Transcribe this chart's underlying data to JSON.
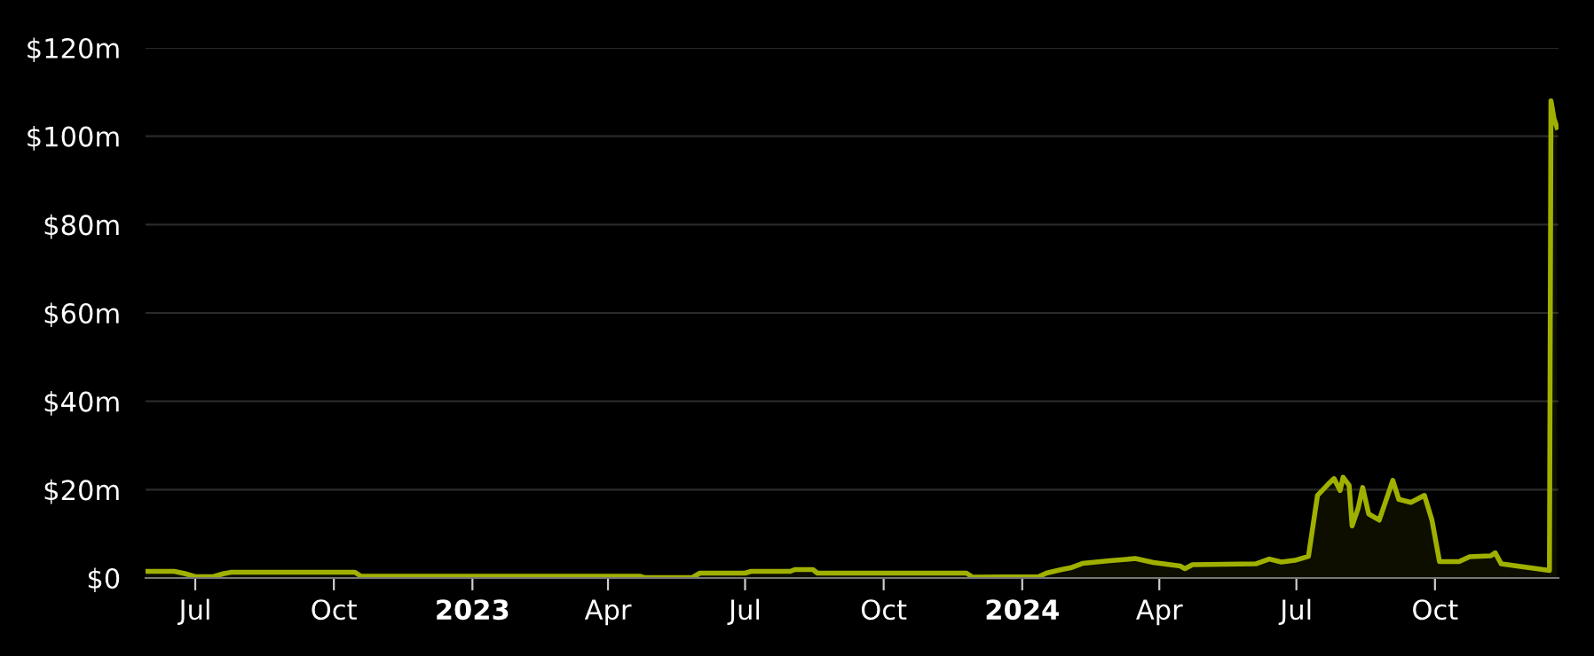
{
  "chart_data": {
    "type": "area",
    "grid": "y",
    "legend": false,
    "xlim": [
      "2022-05-29",
      "2024-12-22"
    ],
    "xticks": [
      {
        "value": "2022-07-01",
        "label": "Jul"
      },
      {
        "value": "2022-10-01",
        "label": "Oct"
      },
      {
        "value": "2023-01-01",
        "label": "2023"
      },
      {
        "value": "2023-04-01",
        "label": "Apr"
      },
      {
        "value": "2023-07-01",
        "label": "Jul"
      },
      {
        "value": "2023-10-01",
        "label": "Oct"
      },
      {
        "value": "2024-01-01",
        "label": "2024"
      },
      {
        "value": "2024-04-01",
        "label": "Apr"
      },
      {
        "value": "2024-07-01",
        "label": "Jul"
      },
      {
        "value": "2024-10-01",
        "label": "Oct"
      }
    ],
    "ylim": [
      0,
      120
    ],
    "yticks": [
      {
        "value": 0,
        "label": "$0"
      },
      {
        "value": 20,
        "label": "$20m"
      },
      {
        "value": 40,
        "label": "$40m"
      },
      {
        "value": 60,
        "label": "$60m"
      },
      {
        "value": 80,
        "label": "$80m"
      },
      {
        "value": 100,
        "label": "$100m"
      },
      {
        "value": 120,
        "label": "$120m"
      }
    ],
    "series": [
      {
        "color": "#a0b000",
        "x": [
          "2022-05-29",
          "2022-06-17",
          "2022-06-24",
          "2022-07-01",
          "2022-07-13",
          "2022-07-20",
          "2022-07-25",
          "2022-10-15",
          "2022-10-19",
          "2023-04-22",
          "2023-04-25",
          "2023-05-27",
          "2023-06-01",
          "2023-07-01",
          "2023-07-05",
          "2023-07-31",
          "2023-08-03",
          "2023-08-15",
          "2023-08-18",
          "2023-11-25",
          "2023-11-29",
          "2024-01-12",
          "2024-01-17",
          "2024-01-27",
          "2024-02-02",
          "2024-02-10",
          "2024-02-28",
          "2024-03-16",
          "2024-03-28",
          "2024-04-15",
          "2024-04-18",
          "2024-04-23",
          "2024-06-04",
          "2024-06-13",
          "2024-06-21",
          "2024-06-30",
          "2024-07-09",
          "2024-07-15",
          "2024-07-22",
          "2024-07-26",
          "2024-07-30",
          "2024-08-01",
          "2024-08-05",
          "2024-08-07",
          "2024-08-11",
          "2024-08-14",
          "2024-08-18",
          "2024-08-25",
          "2024-08-29",
          "2024-09-03",
          "2024-09-07",
          "2024-09-15",
          "2024-09-24",
          "2024-09-29",
          "2024-10-04",
          "2024-10-17",
          "2024-10-24",
          "2024-11-07",
          "2024-11-10",
          "2024-11-14",
          "2024-12-01",
          "2024-12-16",
          "2024-12-17",
          "2024-12-19",
          "2024-12-21"
        ],
        "values": [
          1.5,
          1.5,
          1.0,
          0.3,
          0.3,
          1.0,
          1.3,
          1.3,
          0.4,
          0.4,
          0.1,
          0.1,
          1.1,
          1.1,
          1.5,
          1.5,
          1.9,
          1.9,
          1.1,
          1.1,
          0.2,
          0.3,
          1.1,
          1.9,
          2.3,
          3.3,
          3.9,
          4.4,
          3.5,
          2.7,
          2.1,
          3.0,
          3.2,
          4.3,
          3.6,
          4.0,
          4.9,
          18.7,
          21.2,
          22.5,
          19.8,
          22.8,
          21.0,
          11.8,
          15.8,
          20.5,
          14.5,
          13.1,
          17.1,
          22.1,
          17.8,
          17.1,
          18.7,
          13.1,
          3.7,
          3.7,
          4.8,
          5.0,
          5.7,
          3.2,
          2.4,
          1.7,
          108,
          104,
          102
        ]
      }
    ]
  }
}
